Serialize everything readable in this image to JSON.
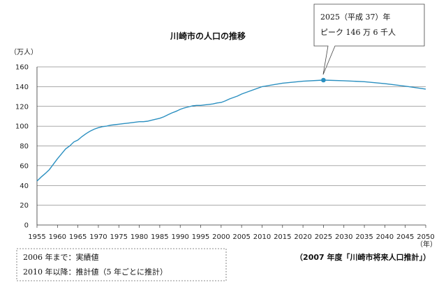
{
  "chart_data": {
    "type": "line",
    "title": "川崎市の人口の推移",
    "ylabel": "（万人）",
    "xlabel": "（年）",
    "ylim": [
      0,
      160
    ],
    "xlim": [
      1955,
      2050
    ],
    "y_ticks": [
      0,
      20,
      40,
      60,
      80,
      100,
      120,
      140,
      160
    ],
    "x_ticks": [
      1955,
      1960,
      1965,
      1970,
      1975,
      1980,
      1985,
      1990,
      1995,
      2000,
      2005,
      2010,
      2015,
      2020,
      2025,
      2030,
      2035,
      2040,
      2045,
      2050
    ],
    "grid": true,
    "line_color": "#2a8fc0",
    "series": [
      {
        "x": [
          1955,
          1956,
          1957,
          1958,
          1959,
          1960,
          1961,
          1962,
          1963,
          1964,
          1965,
          1966,
          1967,
          1968,
          1969,
          1970,
          1971,
          1972,
          1973,
          1974,
          1975,
          1976,
          1977,
          1978,
          1979,
          1980,
          1981,
          1982,
          1983,
          1984,
          1985,
          1986,
          1987,
          1988,
          1989,
          1990,
          1991,
          1992,
          1993,
          1994,
          1995,
          1996,
          1997,
          1998,
          1999,
          2000,
          2001,
          2002,
          2003,
          2004,
          2005,
          2006,
          2010,
          2015,
          2020,
          2025,
          2030,
          2035,
          2040,
          2045,
          2050
        ],
        "values": [
          44.5,
          48.5,
          52,
          56,
          61.5,
          67,
          72,
          77,
          80,
          84,
          86,
          89.5,
          92.5,
          95,
          97,
          98.5,
          99.5,
          100,
          101,
          101.5,
          102,
          102.5,
          103,
          103.5,
          104,
          104.5,
          104.5,
          105,
          106,
          107,
          108,
          109.5,
          111.5,
          113.5,
          115,
          117,
          118.5,
          119.5,
          120.5,
          121,
          121,
          121.5,
          122,
          122.5,
          123.5,
          124,
          125.5,
          127.5,
          129,
          130.5,
          132.5,
          134,
          140,
          143.5,
          145.5,
          146.6,
          146,
          145,
          143,
          140.5,
          137.5
        ]
      }
    ],
    "peak": {
      "x": 2025,
      "y": 146.6
    },
    "annotation": {
      "line1": "2025（平成 37）年",
      "line2": "ピーク 146 万 6 千人"
    },
    "note": {
      "line1": "2006 年まで：実績値",
      "line2": "2010 年以降：推計値（5 年ごとに推計）"
    },
    "source": "（2007 年度「川崎市将来人口推計」）"
  }
}
